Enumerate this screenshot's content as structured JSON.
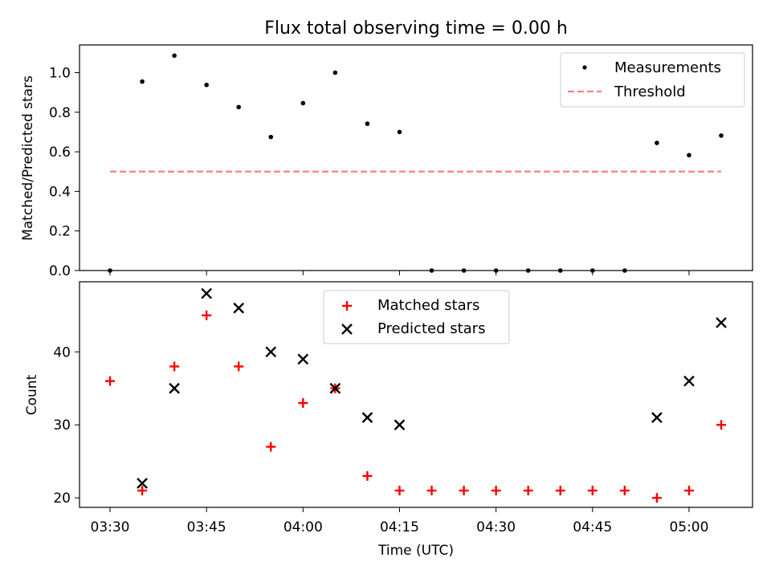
{
  "title": "Flux total observing time = 0.00 h",
  "chart_data": [
    {
      "type": "scatter",
      "panel": "top",
      "ylabel": "Matched/Predicted stars",
      "ylim": [
        0,
        1.14
      ],
      "yticks": [
        "0.0",
        "0.2",
        "0.4",
        "0.6",
        "0.8",
        "1.0"
      ],
      "legend_position": "top-right",
      "series": [
        {
          "name": "Measurements",
          "marker": "dot",
          "color": "#000000",
          "x": [
            "03:30",
            "03:35",
            "03:40",
            "03:45",
            "03:50",
            "03:55",
            "04:00",
            "04:05",
            "04:10",
            "04:15",
            "04:20",
            "04:25",
            "04:30",
            "04:35",
            "04:40",
            "04:45",
            "04:50",
            "04:55",
            "05:00",
            "05:05"
          ],
          "y": [
            0.0,
            0.955,
            1.086,
            0.938,
            0.826,
            0.675,
            0.846,
            1.0,
            0.742,
            0.7,
            0.0,
            0.0,
            0.0,
            0.0,
            0.0,
            0.0,
            0.0,
            0.645,
            0.583,
            0.682
          ]
        },
        {
          "name": "Threshold",
          "marker": "dashed-line",
          "color": "#ff8080",
          "x": [
            "03:30",
            "05:05"
          ],
          "y": [
            0.5,
            0.5
          ]
        }
      ]
    },
    {
      "type": "scatter",
      "panel": "bottom",
      "xlabel": "Time (UTC)",
      "ylabel": "Count",
      "ylim": [
        18.7,
        49.6
      ],
      "yticks": [
        "20",
        "30",
        "40"
      ],
      "xticks": [
        "03:30",
        "03:45",
        "04:00",
        "04:15",
        "04:30",
        "04:45",
        "05:00"
      ],
      "legend_position": "top-center",
      "series": [
        {
          "name": "Matched stars",
          "marker": "plus",
          "color": "#ff0000",
          "x": [
            "03:30",
            "03:35",
            "03:40",
            "03:45",
            "03:50",
            "03:55",
            "04:00",
            "04:05",
            "04:10",
            "04:15",
            "04:20",
            "04:25",
            "04:30",
            "04:35",
            "04:40",
            "04:45",
            "04:50",
            "04:55",
            "05:00",
            "05:05"
          ],
          "y": [
            36,
            21,
            38,
            45,
            38,
            27,
            33,
            35,
            23,
            21,
            21,
            21,
            21,
            21,
            21,
            21,
            21,
            20,
            21,
            30
          ]
        },
        {
          "name": "Predicted stars",
          "marker": "x",
          "color": "#000000",
          "x": [
            "03:35",
            "03:40",
            "03:45",
            "03:50",
            "03:55",
            "04:00",
            "04:05",
            "04:10",
            "04:15",
            "04:55",
            "05:00",
            "05:05"
          ],
          "y": [
            22,
            35,
            48,
            46,
            40,
            39,
            35,
            31,
            30,
            31,
            36,
            44
          ]
        }
      ]
    }
  ]
}
